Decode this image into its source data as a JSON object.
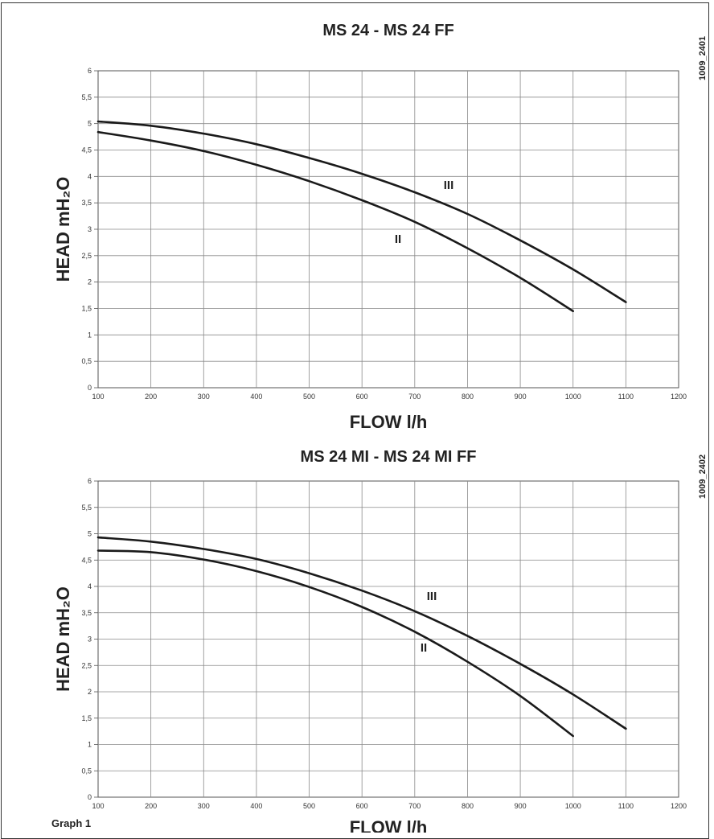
{
  "figure": {
    "footer": "Graph 1",
    "codes": [
      "1009_2401",
      "1009_2402"
    ]
  },
  "chart_data": [
    {
      "type": "line",
      "title": "MS 24 - MS 24 FF",
      "xlabel": "FLOW l/h",
      "ylabel": "HEAD mH₂O",
      "xlim": [
        100,
        1200
      ],
      "ylim": [
        0,
        6
      ],
      "x_ticks": [
        "100",
        "200",
        "300",
        "400",
        "500",
        "600",
        "700",
        "800",
        "900",
        "1000",
        "1100",
        "1200"
      ],
      "y_ticks": [
        "0",
        "0,5",
        "1",
        "1,5",
        "2",
        "2,5",
        "3",
        "3,5",
        "4",
        "4,5",
        "5",
        "5,5",
        "6"
      ],
      "grid": true,
      "series": [
        {
          "name": "II",
          "x": [
            100,
            200,
            300,
            400,
            500,
            600,
            700,
            800,
            900,
            1000
          ],
          "y": [
            4.84,
            4.68,
            4.48,
            4.22,
            3.91,
            3.55,
            3.14,
            2.64,
            2.08,
            1.45
          ]
        },
        {
          "name": "III",
          "x": [
            100,
            200,
            300,
            400,
            500,
            600,
            700,
            800,
            900,
            1000,
            1100
          ],
          "y": [
            5.04,
            4.96,
            4.81,
            4.61,
            4.35,
            4.05,
            3.7,
            3.29,
            2.79,
            2.24,
            1.62
          ]
        }
      ]
    },
    {
      "type": "line",
      "title": "MS 24 MI - MS 24 MI FF",
      "xlabel": "FLOW l/h",
      "ylabel": "HEAD mH₂O",
      "xlim": [
        100,
        1200
      ],
      "ylim": [
        0,
        6
      ],
      "x_ticks": [
        "100",
        "200",
        "300",
        "400",
        "500",
        "600",
        "700",
        "800",
        "900",
        "1000",
        "1100",
        "1200"
      ],
      "y_ticks": [
        "0",
        "0,5",
        "1",
        "1,5",
        "2",
        "2,5",
        "3",
        "3,5",
        "4",
        "4,5",
        "5",
        "5,5",
        "6"
      ],
      "grid": true,
      "series": [
        {
          "name": "II",
          "x": [
            100,
            200,
            300,
            400,
            500,
            600,
            700,
            800,
            900,
            1000
          ],
          "y": [
            4.68,
            4.65,
            4.51,
            4.29,
            3.99,
            3.61,
            3.14,
            2.57,
            1.92,
            1.16
          ]
        },
        {
          "name": "III",
          "x": [
            100,
            200,
            300,
            400,
            500,
            600,
            700,
            800,
            900,
            1000,
            1100
          ],
          "y": [
            4.93,
            4.85,
            4.71,
            4.52,
            4.25,
            3.92,
            3.53,
            3.06,
            2.53,
            1.95,
            1.3
          ]
        }
      ]
    }
  ]
}
